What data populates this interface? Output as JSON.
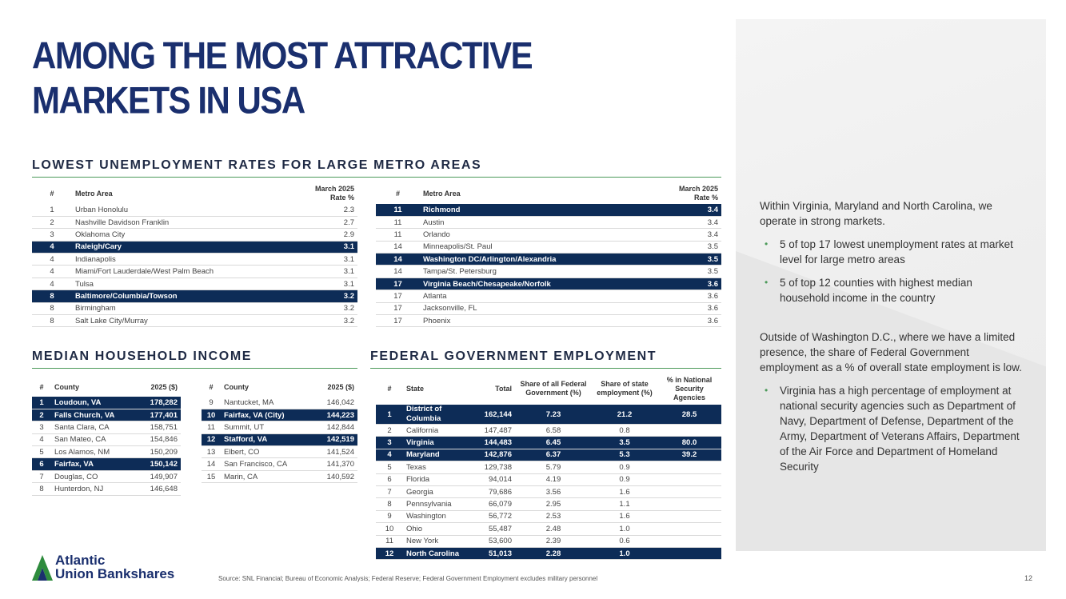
{
  "title": {
    "line1": "AMONG THE MOST ATTRACTIVE",
    "line2": "MARKETS IN USA"
  },
  "colors": {
    "navy": "#0d2c57",
    "title_blue": "#1a2f6e",
    "accent_green": "#4c9a5a"
  },
  "unemployment": {
    "heading": "LOWEST UNEMPLOYMENT RATES FOR LARGE METRO AREAS",
    "col_rank": "#",
    "col_metro": "Metro Area",
    "col_rate_line1": "March 2025",
    "col_rate_line2": "Rate %",
    "left_rows": [
      {
        "rank": "1",
        "metro": "Urban Honolulu",
        "rate": "2.3",
        "hl": false
      },
      {
        "rank": "2",
        "metro": "Nashville Davidson Franklin",
        "rate": "2.7",
        "hl": false
      },
      {
        "rank": "3",
        "metro": "Oklahoma City",
        "rate": "2.9",
        "hl": false
      },
      {
        "rank": "4",
        "metro": "Raleigh/Cary",
        "rate": "3.1",
        "hl": true
      },
      {
        "rank": "4",
        "metro": "Indianapolis",
        "rate": "3.1",
        "hl": false
      },
      {
        "rank": "4",
        "metro": "Miami/Fort Lauderdale/West Palm Beach",
        "rate": "3.1",
        "hl": false
      },
      {
        "rank": "4",
        "metro": "Tulsa",
        "rate": "3.1",
        "hl": false
      },
      {
        "rank": "8",
        "metro": "Baltimore/Columbia/Towson",
        "rate": "3.2",
        "hl": true
      },
      {
        "rank": "8",
        "metro": "Birmingham",
        "rate": "3.2",
        "hl": false
      },
      {
        "rank": "8",
        "metro": "Salt Lake City/Murray",
        "rate": "3.2",
        "hl": false
      }
    ],
    "right_rows": [
      {
        "rank": "11",
        "metro": "Richmond",
        "rate": "3.4",
        "hl": true
      },
      {
        "rank": "11",
        "metro": "Austin",
        "rate": "3.4",
        "hl": false
      },
      {
        "rank": "11",
        "metro": "Orlando",
        "rate": "3.4",
        "hl": false
      },
      {
        "rank": "14",
        "metro": "Minneapolis/St. Paul",
        "rate": "3.5",
        "hl": false
      },
      {
        "rank": "14",
        "metro": "Washington DC/Arlington/Alexandria",
        "rate": "3.5",
        "hl": true
      },
      {
        "rank": "14",
        "metro": "Tampa/St. Petersburg",
        "rate": "3.5",
        "hl": false
      },
      {
        "rank": "17",
        "metro": "Virginia Beach/Chesapeake/Norfolk",
        "rate": "3.6",
        "hl": true
      },
      {
        "rank": "17",
        "metro": "Atlanta",
        "rate": "3.6",
        "hl": false
      },
      {
        "rank": "17",
        "metro": "Jacksonville, FL",
        "rate": "3.6",
        "hl": false
      },
      {
        "rank": "17",
        "metro": "Phoenix",
        "rate": "3.6",
        "hl": false
      }
    ]
  },
  "income": {
    "heading": "MEDIAN HOUSEHOLD INCOME",
    "col_rank": "#",
    "col_county": "County",
    "col_value": "2025 ($)",
    "left_rows": [
      {
        "rank": "1",
        "county": "Loudoun, VA",
        "value": "178,282",
        "hl": true
      },
      {
        "rank": "2",
        "county": "Falls Church, VA",
        "value": "177,401",
        "hl": true
      },
      {
        "rank": "3",
        "county": "Santa Clara, CA",
        "value": "158,751",
        "hl": false
      },
      {
        "rank": "4",
        "county": "San Mateo, CA",
        "value": "154,846",
        "hl": false
      },
      {
        "rank": "5",
        "county": "Los Alamos, NM",
        "value": "150,209",
        "hl": false
      },
      {
        "rank": "6",
        "county": "Fairfax, VA",
        "value": "150,142",
        "hl": true
      },
      {
        "rank": "7",
        "county": "Douglas, CO",
        "value": "149,907",
        "hl": false
      },
      {
        "rank": "8",
        "county": "Hunterdon, NJ",
        "value": "146,648",
        "hl": false
      }
    ],
    "right_rows": [
      {
        "rank": "9",
        "county": "Nantucket, MA",
        "value": "146,042",
        "hl": false
      },
      {
        "rank": "10",
        "county": "Fairfax, VA (City)",
        "value": "144,223",
        "hl": true
      },
      {
        "rank": "11",
        "county": "Summit, UT",
        "value": "142,844",
        "hl": false
      },
      {
        "rank": "12",
        "county": "Stafford, VA",
        "value": "142,519",
        "hl": true
      },
      {
        "rank": "13",
        "county": "Elbert, CO",
        "value": "141,524",
        "hl": false
      },
      {
        "rank": "14",
        "county": "San Francisco, CA",
        "value": "141,370",
        "hl": false
      },
      {
        "rank": "15",
        "county": "Marin, CA",
        "value": "140,592",
        "hl": false
      }
    ]
  },
  "federal": {
    "heading": "FEDERAL GOVERNMENT EMPLOYMENT",
    "col_rank": "#",
    "col_state": "State",
    "col_total": "Total",
    "col_share_federal": "Share of all Federal Government (%)",
    "col_share_state": "Share of state employment (%)",
    "col_national_security": "% in National Security Agencies",
    "rows": [
      {
        "rank": "1",
        "state": "District of Columbia",
        "total": "162,144",
        "share_fed": "7.23",
        "share_state": "21.2",
        "nsa": "28.5",
        "hl": true
      },
      {
        "rank": "2",
        "state": "California",
        "total": "147,487",
        "share_fed": "6.58",
        "share_state": "0.8",
        "nsa": "",
        "hl": false
      },
      {
        "rank": "3",
        "state": "Virginia",
        "total": "144,483",
        "share_fed": "6.45",
        "share_state": "3.5",
        "nsa": "80.0",
        "hl": true
      },
      {
        "rank": "4",
        "state": "Maryland",
        "total": "142,876",
        "share_fed": "6.37",
        "share_state": "5.3",
        "nsa": "39.2",
        "hl": true
      },
      {
        "rank": "5",
        "state": "Texas",
        "total": "129,738",
        "share_fed": "5.79",
        "share_state": "0.9",
        "nsa": "",
        "hl": false
      },
      {
        "rank": "6",
        "state": "Florida",
        "total": "94,014",
        "share_fed": "4.19",
        "share_state": "0.9",
        "nsa": "",
        "hl": false
      },
      {
        "rank": "7",
        "state": "Georgia",
        "total": "79,686",
        "share_fed": "3.56",
        "share_state": "1.6",
        "nsa": "",
        "hl": false
      },
      {
        "rank": "8",
        "state": "Pennsylvania",
        "total": "66,079",
        "share_fed": "2.95",
        "share_state": "1.1",
        "nsa": "",
        "hl": false
      },
      {
        "rank": "9",
        "state": "Washington",
        "total": "56,772",
        "share_fed": "2.53",
        "share_state": "1.6",
        "nsa": "",
        "hl": false
      },
      {
        "rank": "10",
        "state": "Ohio",
        "total": "55,487",
        "share_fed": "2.48",
        "share_state": "1.0",
        "nsa": "",
        "hl": false
      },
      {
        "rank": "11",
        "state": "New York",
        "total": "53,600",
        "share_fed": "2.39",
        "share_state": "0.6",
        "nsa": "",
        "hl": false
      },
      {
        "rank": "12",
        "state": "North Carolina",
        "total": "51,013",
        "share_fed": "2.28",
        "share_state": "1.0",
        "nsa": "",
        "hl": true
      }
    ]
  },
  "panel": {
    "para1": "Within Virginia, Maryland and North Carolina, we operate in strong markets.",
    "bullets1": [
      "5 of top 17 lowest unemployment rates at market level for large metro areas",
      "5 of top 12 counties with highest median household income in the country"
    ],
    "para2": "Outside of Washington D.C., where we have a limited presence, the share of Federal Government employment as a % of overall state employment is low.",
    "bullets2": [
      "Virginia has a high percentage of employment at national security agencies such as Department of Navy, Department of Defense, Department of the Army, Department of Veterans Affairs, Department of the Air Force and Department of Homeland Security"
    ],
    "bullet_glyph": "•"
  },
  "footer": {
    "logo_line1": "Atlantic",
    "logo_line2": "Union Bankshares",
    "source": "Source: SNL Financial; Bureau of Economic Analysis; Federal Reserve; Federal Government Employment excludes military personnel",
    "page": "12"
  }
}
